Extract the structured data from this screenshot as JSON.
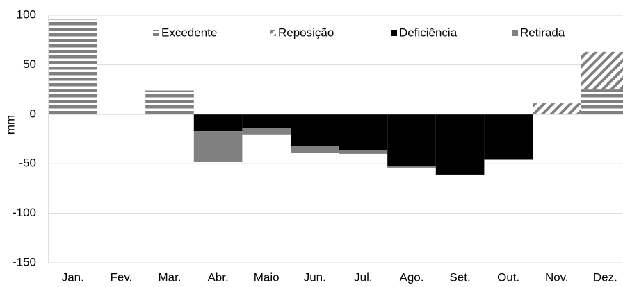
{
  "chart_data": {
    "type": "bar",
    "stacked": true,
    "y_label": "mm",
    "categories": [
      "Jan.",
      "Fev.",
      "Mar.",
      "Abr.",
      "Maio",
      "Jun.",
      "Jul.",
      "Ago.",
      "Set.",
      "Out.",
      "Nov.",
      "Dez."
    ],
    "series": [
      {
        "name": "Excedente",
        "color": "#808080",
        "pattern": "horizontal",
        "values": [
          96,
          0,
          24,
          0,
          0,
          0,
          0,
          0,
          0,
          0,
          0,
          25
        ]
      },
      {
        "name": "Reposição",
        "color": "#808080",
        "pattern": "diagonal",
        "values": [
          0,
          0,
          0,
          0,
          0,
          0,
          0,
          0,
          0,
          0,
          11,
          38
        ]
      },
      {
        "name": "Deficiência",
        "color": "#000000",
        "pattern": "solid",
        "values": [
          0,
          0,
          0,
          -17,
          -14,
          -32,
          -36,
          -52,
          -61,
          -46,
          0,
          0
        ]
      },
      {
        "name": "Retirada",
        "color": "#808080",
        "pattern": "solid",
        "values": [
          0,
          0,
          0,
          -31,
          -7,
          -7,
          -4,
          -2,
          0,
          0,
          0,
          0
        ]
      }
    ],
    "ylim": [
      -150,
      100
    ],
    "yticks": [
      -150,
      -100,
      -50,
      0,
      50,
      100
    ],
    "grid": true
  }
}
